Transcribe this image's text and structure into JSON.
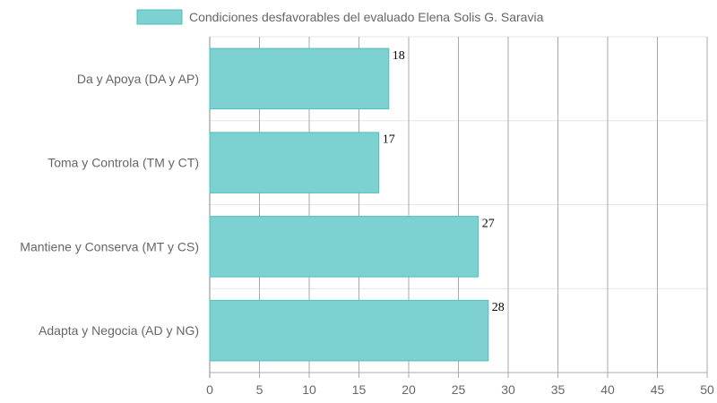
{
  "chart_data": {
    "type": "bar",
    "orientation": "horizontal",
    "categories": [
      "Da y Apoya (DA y AP)",
      "Toma y Controla (TM y CT)",
      "Mantiene y Conserva (MT y CS)",
      "Adapta y Negocia (AD y NG)"
    ],
    "series": [
      {
        "name": "Condiciones desfavorables del evaluado Elena Solis G. Saravia",
        "values": [
          18,
          17,
          27,
          28
        ]
      }
    ],
    "data_labels": [
      "18",
      "17",
      "27",
      "28"
    ],
    "xlim": [
      0,
      50
    ],
    "x_ticks": [
      "0",
      "5",
      "10",
      "15",
      "20",
      "25",
      "30",
      "35",
      "40",
      "45",
      "50"
    ],
    "grid": true,
    "legend_position": "top",
    "colors": {
      "bar_fill": "#7dd1d0",
      "bar_stroke": "#4fbfbd",
      "grid": "#e5e5e5",
      "grid_major": "#aaaaaa",
      "text": "#666666"
    }
  }
}
